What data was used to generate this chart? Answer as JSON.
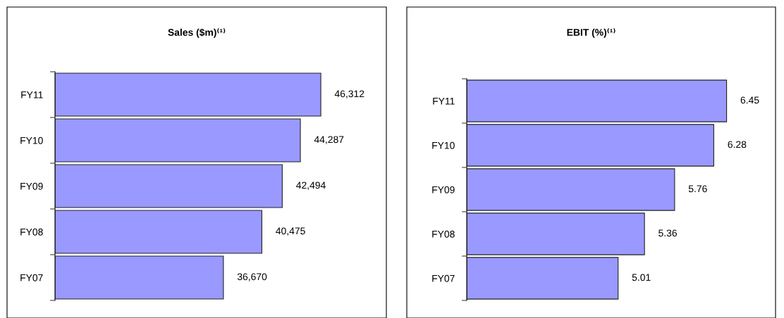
{
  "chart_data": [
    {
      "type": "bar",
      "orientation": "horizontal",
      "title": "Sales ($m)⁽¹⁾",
      "categories": [
        "FY11",
        "FY10",
        "FY09",
        "FY08",
        "FY07"
      ],
      "values": [
        46312,
        44287,
        42494,
        40475,
        36670
      ],
      "value_labels": [
        "46,312",
        "44,287",
        "42,494",
        "40,475",
        "36,670"
      ],
      "color": "#9999ff",
      "xlim": [
        20000,
        52800
      ],
      "tick_labels": "y",
      "grid": false,
      "legend": false
    },
    {
      "type": "bar",
      "orientation": "horizontal",
      "title": "EBIT (%)⁽¹⁾",
      "categories": [
        "FY11",
        "FY10",
        "FY09",
        "FY08",
        "FY07"
      ],
      "values": [
        6.45,
        6.28,
        5.76,
        5.36,
        5.01
      ],
      "value_labels": [
        "6.45",
        "6.28",
        "5.76",
        "5.36",
        "5.01"
      ],
      "color": "#9999ff",
      "xlim": [
        3,
        7.1
      ],
      "tick_labels": "y",
      "grid": false,
      "legend": false
    }
  ]
}
